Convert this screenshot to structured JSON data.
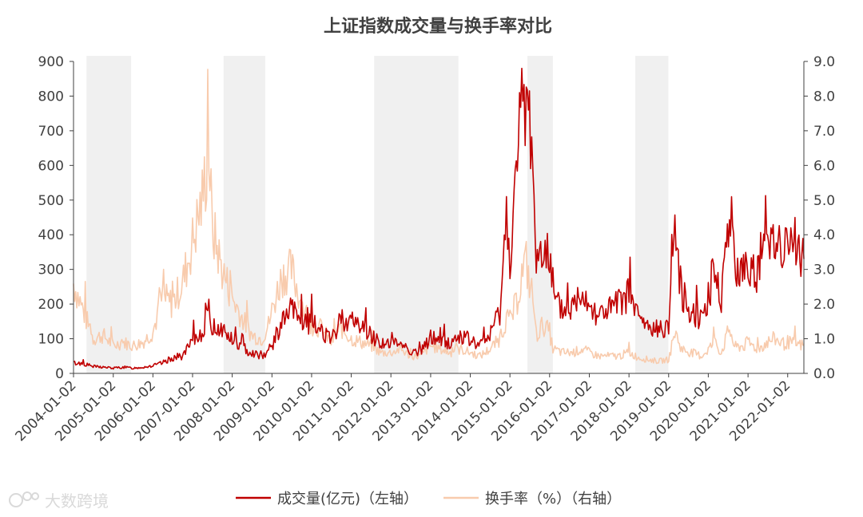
{
  "chart_data": {
    "type": "line",
    "title": "上证指数成交量与换手率对比",
    "xlabel": "",
    "ylabel_left": "",
    "ylabel_right": "",
    "x_tick_labels": [
      "2004-01-02",
      "2005-01-02",
      "2006-01-02",
      "2007-01-02",
      "2008-01-02",
      "2009-01-02",
      "2010-01-02",
      "2011-01-02",
      "2012-01-02",
      "2013-01-02",
      "2014-01-02",
      "2015-01-02",
      "2016-01-02",
      "2017-01-02",
      "2018-01-02",
      "2019-01-02",
      "2020-01-02",
      "2021-01-02",
      "2022-01-02"
    ],
    "xlim": [
      "2004-01-02",
      "2022-05-31"
    ],
    "y_left": {
      "ylim": [
        0,
        900
      ],
      "ticks": [
        "0",
        "100",
        "200",
        "300",
        "400",
        "500",
        "600",
        "700",
        "800",
        "900"
      ]
    },
    "y_right": {
      "ylim": [
        0,
        9
      ],
      "ticks": [
        "0.0",
        "1.0",
        "2.0",
        "3.0",
        "4.0",
        "5.0",
        "6.0",
        "7.0",
        "8.0",
        "9.0"
      ]
    },
    "shaded_periods": [
      [
        "2004-05-01",
        "2005-06-15"
      ],
      [
        "2007-10-15",
        "2008-11-01"
      ],
      [
        "2011-08-01",
        "2013-09-15"
      ],
      [
        "2015-06-12",
        "2016-02-01"
      ],
      [
        "2018-03-01",
        "2018-12-31"
      ]
    ],
    "series": [
      {
        "name": "成交量(亿元)（左轴）",
        "axis": "left",
        "color": "#c00000",
        "points": [
          [
            "2004-01-02",
            30
          ],
          [
            "2004-04-01",
            28
          ],
          [
            "2004-07-01",
            20
          ],
          [
            "2004-10-01",
            18
          ],
          [
            "2005-01-02",
            15
          ],
          [
            "2005-04-01",
            18
          ],
          [
            "2005-07-01",
            15
          ],
          [
            "2005-10-01",
            18
          ],
          [
            "2006-01-02",
            22
          ],
          [
            "2006-04-01",
            30
          ],
          [
            "2006-07-01",
            45
          ],
          [
            "2006-10-01",
            50
          ],
          [
            "2007-01-02",
            90
          ],
          [
            "2007-04-01",
            120
          ],
          [
            "2007-06-01",
            175
          ],
          [
            "2007-07-01",
            135
          ],
          [
            "2007-10-01",
            130
          ],
          [
            "2008-01-02",
            95
          ],
          [
            "2008-04-01",
            75
          ],
          [
            "2008-07-01",
            60
          ],
          [
            "2008-10-01",
            50
          ],
          [
            "2008-12-01",
            65
          ],
          [
            "2009-01-02",
            80
          ],
          [
            "2009-04-01",
            145
          ],
          [
            "2009-07-01",
            185
          ],
          [
            "2009-10-01",
            150
          ],
          [
            "2010-01-02",
            140
          ],
          [
            "2010-04-01",
            130
          ],
          [
            "2010-07-01",
            90
          ],
          [
            "2010-10-01",
            160
          ],
          [
            "2011-01-02",
            150
          ],
          [
            "2011-04-01",
            140
          ],
          [
            "2011-07-01",
            110
          ],
          [
            "2011-10-01",
            90
          ],
          [
            "2012-01-02",
            80
          ],
          [
            "2012-04-01",
            90
          ],
          [
            "2012-07-01",
            65
          ],
          [
            "2012-10-01",
            60
          ],
          [
            "2013-01-02",
            105
          ],
          [
            "2013-04-01",
            95
          ],
          [
            "2013-07-01",
            85
          ],
          [
            "2013-10-01",
            110
          ],
          [
            "2014-01-02",
            95
          ],
          [
            "2014-04-01",
            80
          ],
          [
            "2014-07-01",
            110
          ],
          [
            "2014-10-01",
            180
          ],
          [
            "2014-12-01",
            450
          ],
          [
            "2015-01-02",
            350
          ],
          [
            "2015-03-01",
            550
          ],
          [
            "2015-05-01",
            800
          ],
          [
            "2015-06-01",
            780
          ],
          [
            "2015-07-01",
            720
          ],
          [
            "2015-08-01",
            650
          ],
          [
            "2015-09-01",
            300
          ],
          [
            "2015-11-01",
            400
          ],
          [
            "2016-01-02",
            330
          ],
          [
            "2016-02-01",
            210
          ],
          [
            "2016-05-01",
            180
          ],
          [
            "2016-08-01",
            190
          ],
          [
            "2016-11-01",
            250
          ],
          [
            "2017-01-02",
            200
          ],
          [
            "2017-04-01",
            170
          ],
          [
            "2017-07-01",
            185
          ],
          [
            "2017-10-01",
            200
          ],
          [
            "2018-01-02",
            230
          ],
          [
            "2018-04-01",
            160
          ],
          [
            "2018-07-01",
            130
          ],
          [
            "2018-10-01",
            125
          ],
          [
            "2019-01-02",
            140
          ],
          [
            "2019-03-01",
            420
          ],
          [
            "2019-05-01",
            230
          ],
          [
            "2019-08-01",
            180
          ],
          [
            "2019-11-01",
            160
          ],
          [
            "2020-01-02",
            220
          ],
          [
            "2020-03-01",
            310
          ],
          [
            "2020-05-01",
            210
          ],
          [
            "2020-07-15",
            500
          ],
          [
            "2020-09-01",
            290
          ],
          [
            "2020-12-01",
            300
          ],
          [
            "2021-01-02",
            330
          ],
          [
            "2021-04-01",
            280
          ],
          [
            "2021-07-01",
            380
          ],
          [
            "2021-09-01",
            420
          ],
          [
            "2021-12-01",
            340
          ],
          [
            "2022-01-02",
            380
          ],
          [
            "2022-03-01",
            350
          ],
          [
            "2022-05-31",
            330
          ]
        ]
      },
      {
        "name": "换手率（%）（右轴）",
        "axis": "right",
        "color": "#f8cbad",
        "points": [
          [
            "2004-01-02",
            2.6
          ],
          [
            "2004-04-01",
            1.8
          ],
          [
            "2004-07-01",
            1.0
          ],
          [
            "2004-10-01",
            1.1
          ],
          [
            "2005-01-02",
            0.8
          ],
          [
            "2005-04-01",
            0.9
          ],
          [
            "2005-07-01",
            0.8
          ],
          [
            "2005-10-01",
            0.9
          ],
          [
            "2006-01-02",
            1.2
          ],
          [
            "2006-04-01",
            2.2
          ],
          [
            "2006-07-01",
            2.0
          ],
          [
            "2006-10-01",
            2.6
          ],
          [
            "2007-01-02",
            3.8
          ],
          [
            "2007-04-01",
            5.0
          ],
          [
            "2007-06-01",
            6.5
          ],
          [
            "2007-07-01",
            4.2
          ],
          [
            "2007-10-01",
            3.0
          ],
          [
            "2008-01-02",
            2.2
          ],
          [
            "2008-04-01",
            1.6
          ],
          [
            "2008-07-01",
            1.1
          ],
          [
            "2008-10-01",
            1.0
          ],
          [
            "2008-12-01",
            1.4
          ],
          [
            "2009-01-02",
            1.8
          ],
          [
            "2009-04-01",
            2.8
          ],
          [
            "2009-07-01",
            3.0
          ],
          [
            "2009-10-01",
            2.0
          ],
          [
            "2010-01-02",
            1.4
          ],
          [
            "2010-04-01",
            1.3
          ],
          [
            "2010-07-01",
            0.9
          ],
          [
            "2010-10-01",
            1.3
          ],
          [
            "2011-01-02",
            1.0
          ],
          [
            "2011-04-01",
            0.9
          ],
          [
            "2011-07-01",
            0.8
          ],
          [
            "2011-10-01",
            0.6
          ],
          [
            "2012-01-02",
            0.6
          ],
          [
            "2012-04-01",
            0.7
          ],
          [
            "2012-07-01",
            0.5
          ],
          [
            "2012-10-01",
            0.5
          ],
          [
            "2013-01-02",
            0.8
          ],
          [
            "2013-04-01",
            0.7
          ],
          [
            "2013-07-01",
            0.6
          ],
          [
            "2013-10-01",
            0.7
          ],
          [
            "2014-01-02",
            0.6
          ],
          [
            "2014-04-01",
            0.5
          ],
          [
            "2014-07-01",
            0.7
          ],
          [
            "2014-10-01",
            1.0
          ],
          [
            "2014-12-01",
            1.6
          ],
          [
            "2015-01-02",
            1.5
          ],
          [
            "2015-03-01",
            2.0
          ],
          [
            "2015-05-01",
            3.0
          ],
          [
            "2015-06-01",
            3.2
          ],
          [
            "2015-07-01",
            2.6
          ],
          [
            "2015-08-01",
            2.2
          ],
          [
            "2015-09-01",
            1.1
          ],
          [
            "2015-11-01",
            1.4
          ],
          [
            "2016-01-02",
            1.2
          ],
          [
            "2016-02-01",
            0.7
          ],
          [
            "2016-05-01",
            0.6
          ],
          [
            "2016-08-01",
            0.6
          ],
          [
            "2016-11-01",
            0.7
          ],
          [
            "2017-01-02",
            0.6
          ],
          [
            "2017-04-01",
            0.5
          ],
          [
            "2017-07-01",
            0.5
          ],
          [
            "2017-10-01",
            0.5
          ],
          [
            "2018-01-02",
            0.6
          ],
          [
            "2018-04-01",
            0.45
          ],
          [
            "2018-07-01",
            0.4
          ],
          [
            "2018-10-01",
            0.35
          ],
          [
            "2019-01-02",
            0.4
          ],
          [
            "2019-03-01",
            1.2
          ],
          [
            "2019-05-01",
            0.7
          ],
          [
            "2019-08-01",
            0.6
          ],
          [
            "2019-11-01",
            0.5
          ],
          [
            "2020-01-02",
            0.7
          ],
          [
            "2020-03-01",
            0.9
          ],
          [
            "2020-05-01",
            0.6
          ],
          [
            "2020-07-15",
            1.3
          ],
          [
            "2020-09-01",
            0.75
          ],
          [
            "2020-12-01",
            0.8
          ],
          [
            "2021-01-02",
            0.9
          ],
          [
            "2021-04-01",
            0.7
          ],
          [
            "2021-07-01",
            0.9
          ],
          [
            "2021-09-01",
            1.0
          ],
          [
            "2021-12-01",
            0.85
          ],
          [
            "2022-01-02",
            0.9
          ],
          [
            "2022-03-01",
            0.85
          ],
          [
            "2022-05-31",
            0.8
          ]
        ]
      }
    ],
    "legend": {
      "placement": "bottom",
      "items": [
        {
          "label": "成交量(亿元)（左轴）",
          "color": "#c00000"
        },
        {
          "label": "换手率（%）（右轴）",
          "color": "#f8cbad"
        }
      ]
    },
    "grid": false
  },
  "watermark": {
    "text": "大数跨境"
  }
}
